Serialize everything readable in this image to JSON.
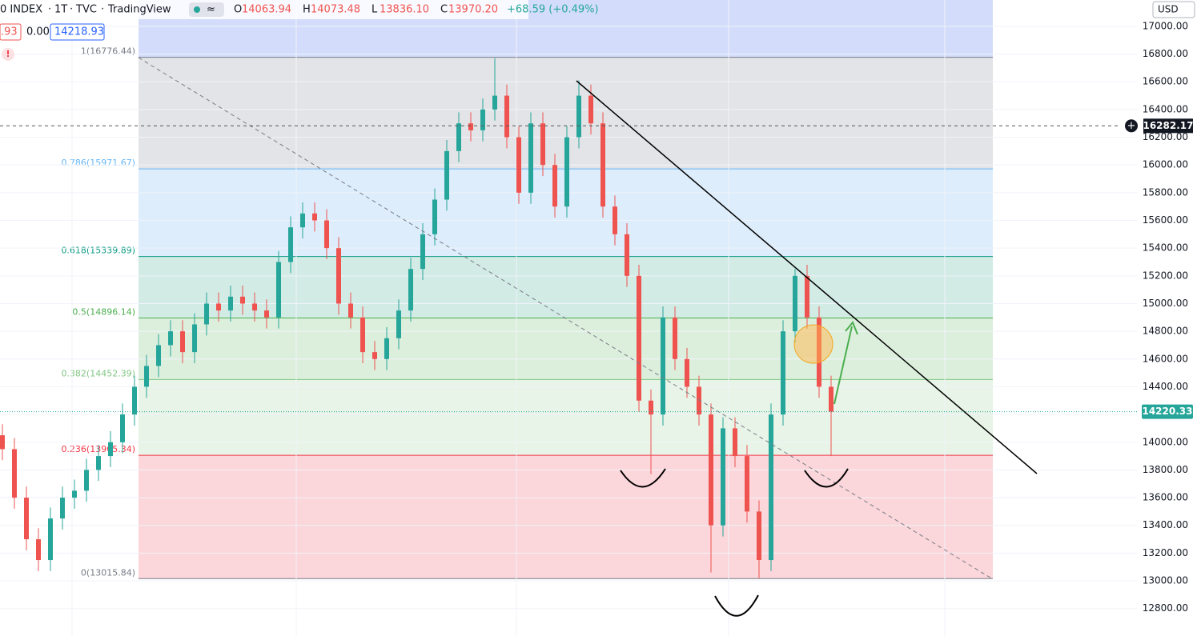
{
  "header": {
    "symbol": "0 INDEX",
    "interval": "1T",
    "source": "TVC",
    "platform": "TradingView",
    "ohlc": [
      {
        "key": "O",
        "value": "14063.94"
      },
      {
        "key": "H",
        "value": "14073.48"
      },
      {
        "key": "L",
        "value": "13836.10"
      },
      {
        "key": "C",
        "value": "13970.20"
      }
    ],
    "change": "+68.59 (+0.49%)",
    "sell": ".93",
    "spread": "0.00",
    "buy": "14218.93",
    "currency": "USD"
  },
  "chart_data": {
    "type": "candlestick",
    "up_color": "#26a69a",
    "down_color": "#ef5350",
    "open": [
      14050,
      13950,
      13600,
      13300,
      13150,
      13450,
      13600,
      13650,
      13800,
      13900,
      14000,
      14200,
      14400,
      14550,
      14700,
      14800,
      14650,
      14850,
      15000,
      14950,
      15050,
      15000,
      14950,
      14900,
      15300,
      15550,
      15650,
      15600,
      15400,
      15000,
      14900,
      14650,
      14600,
      14750,
      14950,
      15250,
      15500,
      15750,
      16100,
      16300,
      16250,
      16400,
      16500,
      16200,
      15800,
      16300,
      16000,
      15700,
      16200,
      16500,
      16300,
      15700,
      15500,
      15200,
      14300,
      14200,
      14900,
      14600,
      14400,
      14200,
      13400,
      14100,
      13900,
      13500,
      13150,
      14200,
      14800,
      15200,
      14900,
      14400
    ],
    "high": [
      14130,
      14030,
      13680,
      13380,
      13530,
      13680,
      13730,
      13880,
      13980,
      14080,
      14280,
      14480,
      14630,
      14780,
      14880,
      14880,
      14930,
      15080,
      15080,
      15130,
      15130,
      15080,
      15030,
      15380,
      15630,
      15730,
      15730,
      15680,
      15480,
      15080,
      14980,
      14730,
      14830,
      15030,
      15330,
      15580,
      15830,
      16180,
      16380,
      16380,
      16480,
      16770,
      16580,
      16280,
      16380,
      16380,
      16080,
      16280,
      16610,
      16580,
      16380,
      15780,
      15580,
      15280,
      14380,
      14980,
      14980,
      14680,
      14480,
      14280,
      14180,
      14180,
      13980,
      13580,
      14280,
      14880,
      15250,
      15280,
      14980,
      14480
    ],
    "low": [
      13870,
      13520,
      13220,
      13070,
      13070,
      13370,
      13520,
      13570,
      13720,
      13820,
      13920,
      14120,
      14320,
      14470,
      14620,
      14570,
      14570,
      14770,
      14870,
      14870,
      14920,
      14870,
      14820,
      14820,
      15220,
      15470,
      15520,
      15320,
      14920,
      14820,
      14570,
      14520,
      14520,
      14670,
      14870,
      15170,
      15420,
      15670,
      16020,
      16170,
      16170,
      16320,
      16120,
      15720,
      15720,
      15920,
      15620,
      15620,
      16120,
      16220,
      15620,
      15420,
      15120,
      14220,
      13770,
      14120,
      14520,
      14320,
      14120,
      13060,
      13320,
      13820,
      13420,
      13020,
      13070,
      14120,
      14720,
      14820,
      14320,
      13900
    ],
    "close": [
      13950,
      13600,
      13300,
      13150,
      13450,
      13600,
      13650,
      13800,
      13900,
      14000,
      14200,
      14400,
      14550,
      14700,
      14800,
      14650,
      14850,
      15000,
      14950,
      15050,
      15000,
      14950,
      14900,
      15300,
      15550,
      15650,
      15600,
      15400,
      15000,
      14900,
      14650,
      14600,
      14750,
      14950,
      15250,
      15500,
      15750,
      16100,
      16300,
      16250,
      16400,
      16500,
      16200,
      15800,
      16300,
      16000,
      15700,
      16200,
      16500,
      16300,
      15700,
      15500,
      15200,
      14300,
      14200,
      14900,
      14600,
      14400,
      14200,
      13400,
      14100,
      13900,
      13500,
      13150,
      14200,
      14800,
      15200,
      14900,
      14400,
      14220
    ],
    "ylim": [
      12602,
      17190
    ],
    "yticks": [
      {
        "value": 12800,
        "label": "12800.00"
      },
      {
        "value": 13000,
        "label": "13000.00"
      },
      {
        "value": 13200,
        "label": "13200.00"
      },
      {
        "value": 13400,
        "label": "13400.00"
      },
      {
        "value": 13600,
        "label": "13600.00"
      },
      {
        "value": 13800,
        "label": "13800.00"
      },
      {
        "value": 14000,
        "label": "14000.00"
      },
      {
        "value": 14200,
        "label": "14200.00"
      },
      {
        "value": 14400,
        "label": "14400.00"
      },
      {
        "value": 14600,
        "label": "14600.00"
      },
      {
        "value": 14800,
        "label": "14800.00"
      },
      {
        "value": 15000,
        "label": "15000.00"
      },
      {
        "value": 15200,
        "label": "15200.00"
      },
      {
        "value": 15400,
        "label": "15400.00"
      },
      {
        "value": 15600,
        "label": "15600.00"
      },
      {
        "value": 15800,
        "label": "15800.00"
      },
      {
        "value": 16000,
        "label": "16000.00"
      },
      {
        "value": 16200,
        "label": "16200.00"
      },
      {
        "value": 16400,
        "label": "16400.00"
      },
      {
        "value": 16600,
        "label": "16600.00"
      },
      {
        "value": 16800,
        "label": "16800.00"
      },
      {
        "value": 17000,
        "label": "17000.00"
      }
    ],
    "grid": true,
    "crosshair_price": 16282.17,
    "last_price": 14220.33,
    "fib_top_fill": "#d3ddfb",
    "fib_levels": [
      {
        "label": "1(16776.44)",
        "price": 16776.44,
        "color": "#787b86",
        "fill": "#e3e4e7"
      },
      {
        "label": "0.786(15971.67)",
        "price": 15971.67,
        "color": "#64b5f6",
        "fill": "#ddedfb"
      },
      {
        "label": "0.618(15339.89)",
        "price": 15339.89,
        "color": "#089981",
        "fill": "#d2ebe5"
      },
      {
        "label": "0.5(14896.14)",
        "price": 14896.14,
        "color": "#4caf50",
        "fill": "#dcefdc"
      },
      {
        "label": "0.382(14452.39)",
        "price": 14452.39,
        "color": "#81c784",
        "fill": "#e7f4e7"
      },
      {
        "label": "0.236(13905.34)",
        "price": 13905.34,
        "color": "#f23645",
        "fill": "#fbd6da"
      },
      {
        "label": "0(13015.84)",
        "price": 13015.84,
        "color": "#787b86"
      }
    ]
  }
}
